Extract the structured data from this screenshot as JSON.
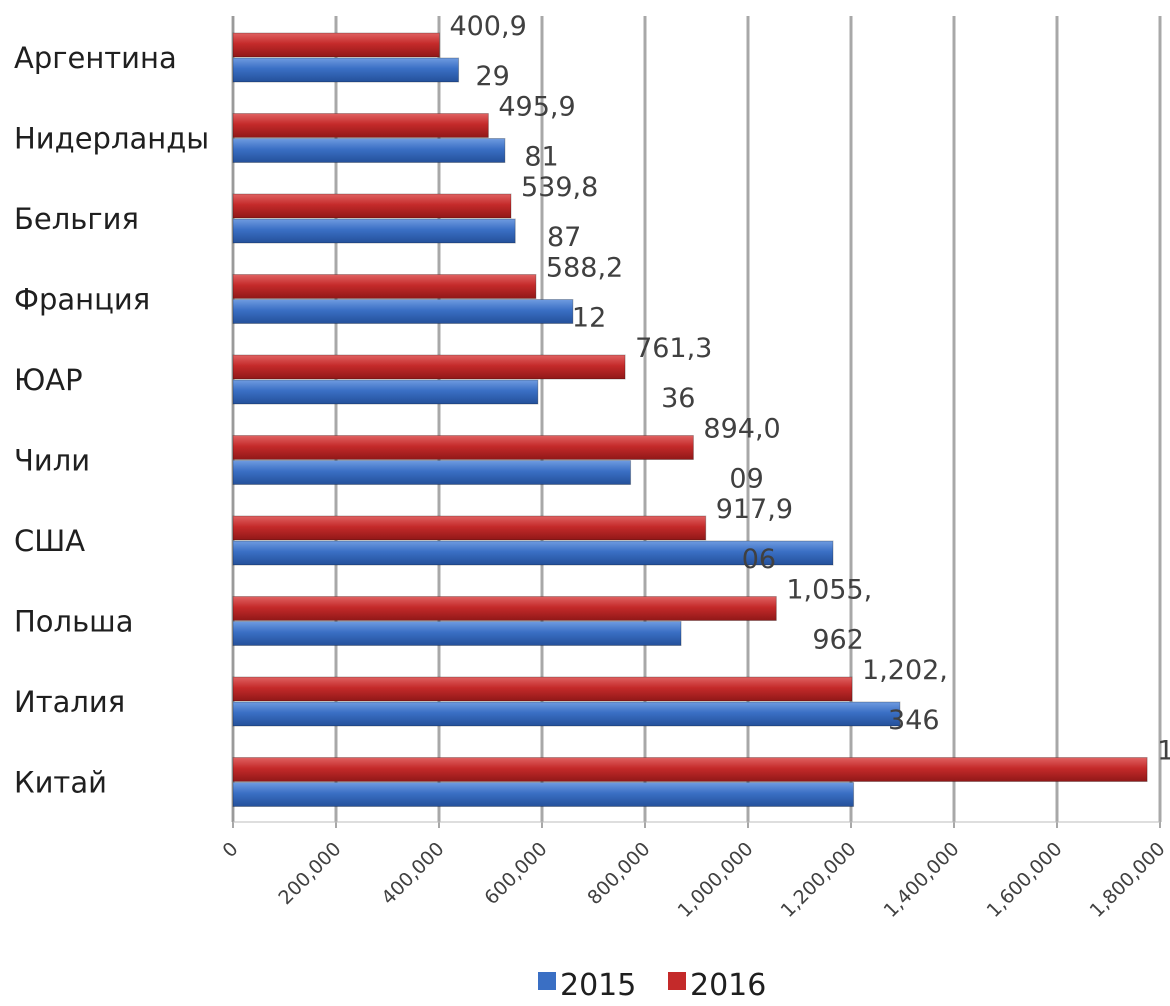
{
  "chart_data": {
    "type": "bar",
    "orientation": "horizontal",
    "categories": [
      "Аргентина",
      "Нидерланды",
      "Бельгия",
      "Франция",
      "ЮАР",
      "Чили",
      "США",
      "Польша",
      "Италия",
      "Китай"
    ],
    "series": [
      {
        "name": "2015",
        "color": "#3a6fc4",
        "values": [
          438000,
          528000,
          548000,
          660000,
          592000,
          772000,
          1165000,
          870000,
          1295000,
          1205000
        ],
        "data_labels": [
          "29",
          "81",
          "87",
          "12",
          "36",
          "09",
          "06",
          "962",
          "346",
          ""
        ]
      },
      {
        "name": "2016",
        "color": "#c42a2a",
        "values": [
          400900,
          495900,
          539800,
          588200,
          761300,
          894000,
          917900,
          1055000,
          1202000,
          1775000
        ],
        "data_labels": [
          "400,9",
          "495,9",
          "539,8",
          "588,2",
          "761,3",
          "894,0",
          "917,9",
          "1,055,",
          "1,202,",
          "1"
        ]
      }
    ],
    "xlim": [
      0,
      1800000
    ],
    "x_ticks": [
      "0",
      "200,000",
      "400,000",
      "600,000",
      "800,000",
      "1,000,000",
      "1,200,000",
      "1,400,000",
      "1,600,000",
      "1,800,000"
    ],
    "title": "",
    "xlabel": "",
    "ylabel": "",
    "grid": true,
    "legend_position": "bottom"
  }
}
